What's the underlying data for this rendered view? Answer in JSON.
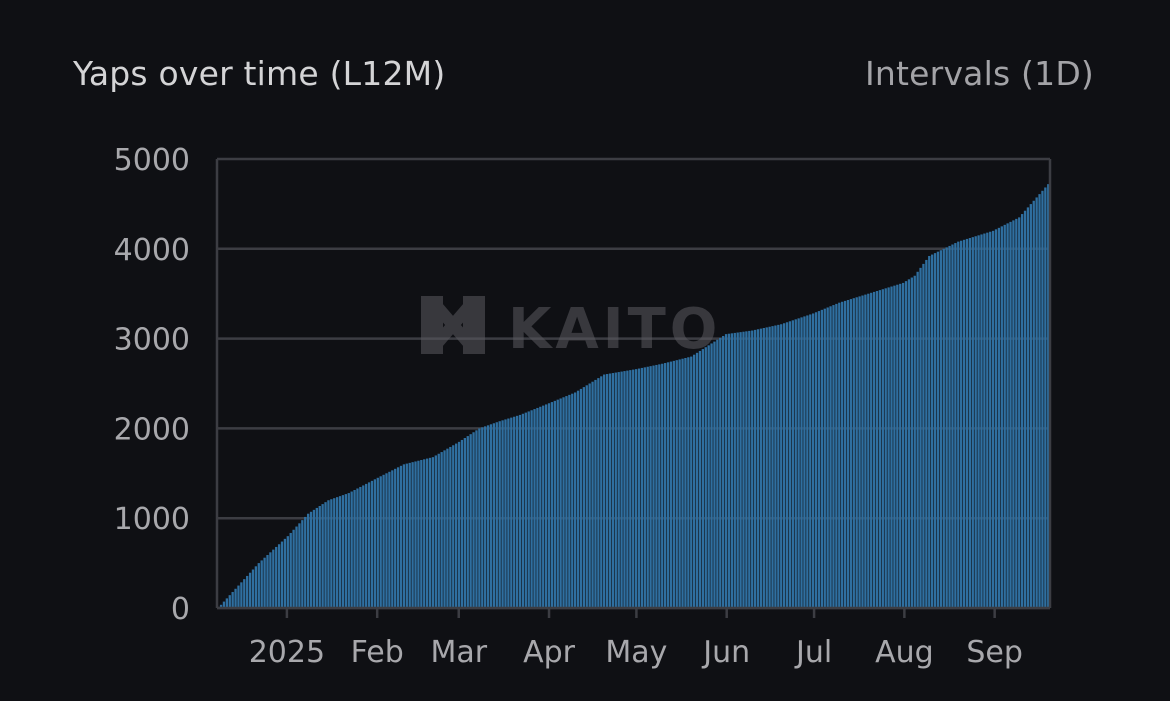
{
  "header": {
    "title": "Yaps over time (L12M)",
    "interval_label": "Intervals (1D)"
  },
  "watermark": {
    "text": "KAITO",
    "icon": "kaito-logo-icon"
  },
  "colors": {
    "background": "#0f1014",
    "bar": "#2f6fa0",
    "grid": "#3c3d43",
    "axis_text": "#a8a8ac"
  },
  "chart_data": {
    "type": "bar",
    "title": "Yaps over time (L12M)",
    "xlabel": "",
    "ylabel": "",
    "ylim": [
      0,
      5000
    ],
    "yticks": [
      0,
      1000,
      2000,
      3000,
      4000,
      5000
    ],
    "grid": true,
    "cumulative": true,
    "x_tick_labels": [
      "2025",
      "Feb",
      "Mar",
      "Apr",
      "May",
      "Jun",
      "Jul",
      "Aug",
      "Sep"
    ],
    "x_range": [
      "2024-12-08",
      "2025-09-20"
    ],
    "x": [
      "2024-12-08",
      "2024-12-15",
      "2024-12-22",
      "2025-01-01",
      "2025-01-08",
      "2025-01-15",
      "2025-01-22",
      "2025-02-01",
      "2025-02-10",
      "2025-02-20",
      "2025-03-01",
      "2025-03-08",
      "2025-03-15",
      "2025-03-22",
      "2025-04-01",
      "2025-04-10",
      "2025-04-20",
      "2025-05-01",
      "2025-05-10",
      "2025-05-20",
      "2025-06-01",
      "2025-06-10",
      "2025-06-20",
      "2025-07-01",
      "2025-07-10",
      "2025-07-20",
      "2025-08-01",
      "2025-08-05",
      "2025-08-10",
      "2025-08-20",
      "2025-09-01",
      "2025-09-10",
      "2025-09-20"
    ],
    "values": [
      0,
      250,
      500,
      800,
      1050,
      1200,
      1280,
      1450,
      1600,
      1680,
      1850,
      2000,
      2080,
      2150,
      2280,
      2400,
      2600,
      2660,
      2720,
      2800,
      3050,
      3090,
      3160,
      3280,
      3400,
      3500,
      3620,
      3700,
      3920,
      4080,
      4200,
      4350,
      4720
    ]
  }
}
